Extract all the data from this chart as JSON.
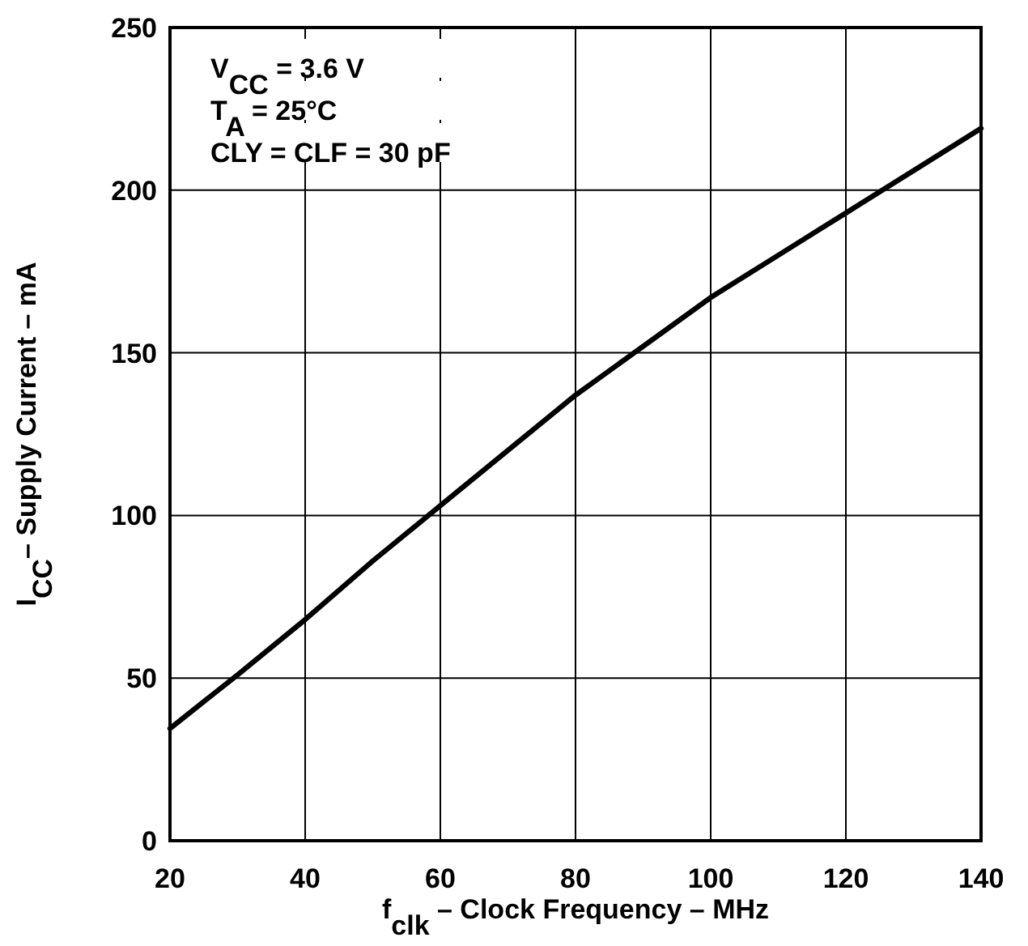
{
  "chart_data": {
    "type": "line",
    "xlabel": "f$_{clk}$ – Clock Frequency – MHz",
    "ylabel": "I$_{CC}$– Supply Current – mA",
    "annotations": [
      "V$_{CC}$ = 3.6 V",
      "T$_{A}$ = 25°C",
      "CLY = CLF = 30 pF"
    ],
    "x": [
      20,
      30,
      40,
      50,
      60,
      70,
      80,
      90,
      100,
      110,
      120,
      130,
      140
    ],
    "series": [
      {
        "color": "#000000",
        "values": [
          34.5,
          51,
          68,
          86,
          103,
          120,
          137,
          152,
          167,
          180,
          193,
          206,
          219
        ]
      }
    ],
    "xlim": [
      20,
      140
    ],
    "xticks": [
      20,
      40,
      60,
      80,
      100,
      120,
      140
    ],
    "ylim": [
      0,
      250
    ],
    "yticks": [
      0,
      50,
      100,
      150,
      200,
      250
    ],
    "grid": true,
    "marker": "none",
    "line_style": "solid"
  }
}
